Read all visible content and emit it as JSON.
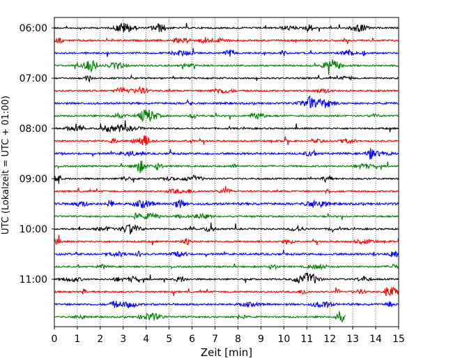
{
  "chart_data": {
    "type": "line",
    "subtype": "helicorder",
    "title": "",
    "xlabel": "Zeit  [min]",
    "ylabel": "UTC (Lokalzeit = UTC + 01:00)",
    "xlim": [
      0,
      15
    ],
    "x_ticks": [
      "0",
      "1",
      "2",
      "3",
      "4",
      "5",
      "6",
      "7",
      "8",
      "9",
      "10",
      "11",
      "12",
      "13",
      "14",
      "15"
    ],
    "y_ticks": [
      {
        "label": "06:00",
        "row": 0
      },
      {
        "label": "07:00",
        "row": 4
      },
      {
        "label": "08:00",
        "row": 8
      },
      {
        "label": "09:00",
        "row": 12
      },
      {
        "label": "10:00",
        "row": 16
      },
      {
        "label": "11:00",
        "row": 20
      }
    ],
    "vertical_grid": "dotted",
    "colors": [
      "#000000",
      "#ff0000",
      "#0000ff",
      "#008000"
    ],
    "series": [
      {
        "row": 0,
        "color": "#000000",
        "end_minute": 15,
        "amplitude": 1.0
      },
      {
        "row": 1,
        "color": "#ff0000",
        "end_minute": 15,
        "amplitude": 1.1
      },
      {
        "row": 2,
        "color": "#0000ff",
        "end_minute": 15,
        "amplitude": 1.0
      },
      {
        "row": 3,
        "color": "#008000",
        "end_minute": 15,
        "amplitude": 1.0
      },
      {
        "row": 4,
        "color": "#000000",
        "end_minute": 15,
        "amplitude": 1.0
      },
      {
        "row": 5,
        "color": "#ff0000",
        "end_minute": 15,
        "amplitude": 1.0
      },
      {
        "row": 6,
        "color": "#0000ff",
        "end_minute": 15,
        "amplitude": 1.2
      },
      {
        "row": 7,
        "color": "#008000",
        "end_minute": 15,
        "amplitude": 1.0
      },
      {
        "row": 8,
        "color": "#000000",
        "end_minute": 15,
        "amplitude": 1.0
      },
      {
        "row": 9,
        "color": "#ff0000",
        "end_minute": 15,
        "amplitude": 1.0
      },
      {
        "row": 10,
        "color": "#0000ff",
        "end_minute": 15,
        "amplitude": 1.2
      },
      {
        "row": 11,
        "color": "#008000",
        "end_minute": 15,
        "amplitude": 1.0
      },
      {
        "row": 12,
        "color": "#000000",
        "end_minute": 15,
        "amplitude": 1.0
      },
      {
        "row": 13,
        "color": "#ff0000",
        "end_minute": 15,
        "amplitude": 1.0
      },
      {
        "row": 14,
        "color": "#0000ff",
        "end_minute": 15,
        "amplitude": 1.4
      },
      {
        "row": 15,
        "color": "#008000",
        "end_minute": 15,
        "amplitude": 1.0
      },
      {
        "row": 16,
        "color": "#000000",
        "end_minute": 15,
        "amplitude": 1.0
      },
      {
        "row": 17,
        "color": "#ff0000",
        "end_minute": 15,
        "amplitude": 1.0
      },
      {
        "row": 18,
        "color": "#0000ff",
        "end_minute": 15,
        "amplitude": 1.2
      },
      {
        "row": 19,
        "color": "#008000",
        "end_minute": 15,
        "amplitude": 1.0
      },
      {
        "row": 20,
        "color": "#000000",
        "end_minute": 15,
        "amplitude": 1.0
      },
      {
        "row": 21,
        "color": "#ff0000",
        "end_minute": 15,
        "amplitude": 1.0
      },
      {
        "row": 22,
        "color": "#0000ff",
        "end_minute": 15,
        "amplitude": 1.2
      },
      {
        "row": 23,
        "color": "#008000",
        "end_minute": 12.7,
        "amplitude": 1.0
      }
    ]
  }
}
